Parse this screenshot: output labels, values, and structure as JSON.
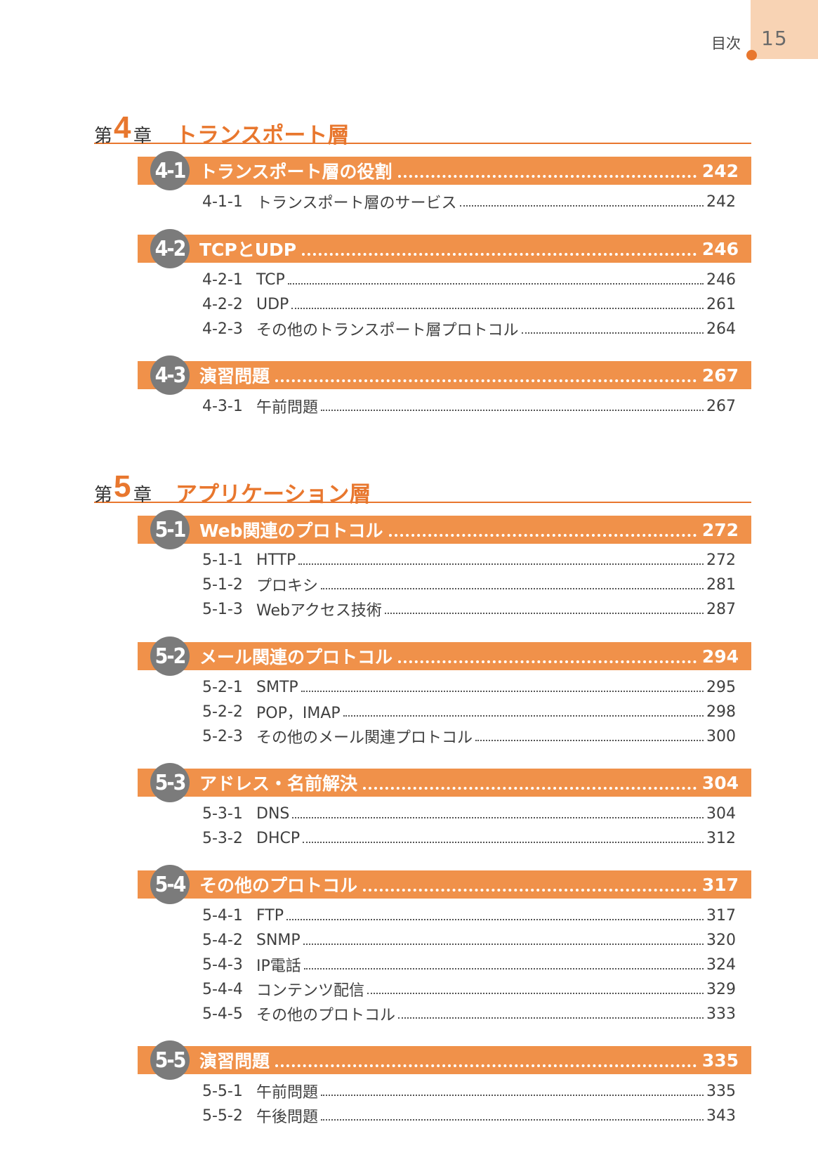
{
  "header": {
    "label": "目次",
    "page_number": "15"
  },
  "chapters": [
    {
      "prefix": "第",
      "number": "4",
      "suffix": "章",
      "title": "トランスポート層",
      "sections": [
        {
          "badge": "4-1",
          "title": "トランスポート層の役割",
          "page": "242",
          "entries": [
            {
              "num": "4-1-1",
              "title": "トランスポート層のサービス",
              "page": "242"
            }
          ]
        },
        {
          "badge": "4-2",
          "title": "TCPとUDP",
          "page": "246",
          "entries": [
            {
              "num": "4-2-1",
              "title": "TCP",
              "page": "246"
            },
            {
              "num": "4-2-2",
              "title": "UDP",
              "page": "261"
            },
            {
              "num": "4-2-3",
              "title": "その他のトランスポート層プロトコル",
              "page": "264"
            }
          ]
        },
        {
          "badge": "4-3",
          "title": "演習問題",
          "page": "267",
          "entries": [
            {
              "num": "4-3-1",
              "title": "午前問題",
              "page": "267"
            }
          ]
        }
      ]
    },
    {
      "prefix": "第",
      "number": "5",
      "suffix": "章",
      "title": "アプリケーション層",
      "sections": [
        {
          "badge": "5-1",
          "title": "Web関連のプロトコル",
          "page": "272",
          "entries": [
            {
              "num": "5-1-1",
              "title": "HTTP",
              "page": "272"
            },
            {
              "num": "5-1-2",
              "title": "プロキシ",
              "page": "281"
            },
            {
              "num": "5-1-3",
              "title": "Webアクセス技術",
              "page": "287"
            }
          ]
        },
        {
          "badge": "5-2",
          "title": "メール関連のプロトコル",
          "page": "294",
          "entries": [
            {
              "num": "5-2-1",
              "title": "SMTP",
              "page": "295"
            },
            {
              "num": "5-2-2",
              "title": "POP，IMAP",
              "page": "298"
            },
            {
              "num": "5-2-3",
              "title": "その他のメール関連プロトコル",
              "page": "300"
            }
          ]
        },
        {
          "badge": "5-3",
          "title": "アドレス・名前解決",
          "page": "304",
          "entries": [
            {
              "num": "5-3-1",
              "title": "DNS",
              "page": "304"
            },
            {
              "num": "5-3-2",
              "title": "DHCP",
              "page": "312"
            }
          ]
        },
        {
          "badge": "5-4",
          "title": "その他のプロトコル",
          "page": "317",
          "entries": [
            {
              "num": "5-4-1",
              "title": "FTP",
              "page": "317"
            },
            {
              "num": "5-4-2",
              "title": "SNMP",
              "page": "320"
            },
            {
              "num": "5-4-3",
              "title": "IP電話",
              "page": "324"
            },
            {
              "num": "5-4-4",
              "title": "コンテンツ配信",
              "page": "329"
            },
            {
              "num": "5-4-5",
              "title": "その他のプロトコル",
              "page": "333"
            }
          ]
        },
        {
          "badge": "5-5",
          "title": "演習問題",
          "page": "335",
          "entries": [
            {
              "num": "5-5-1",
              "title": "午前問題",
              "page": "335"
            },
            {
              "num": "5-5-2",
              "title": "午後問題",
              "page": "343"
            }
          ]
        }
      ]
    }
  ]
}
